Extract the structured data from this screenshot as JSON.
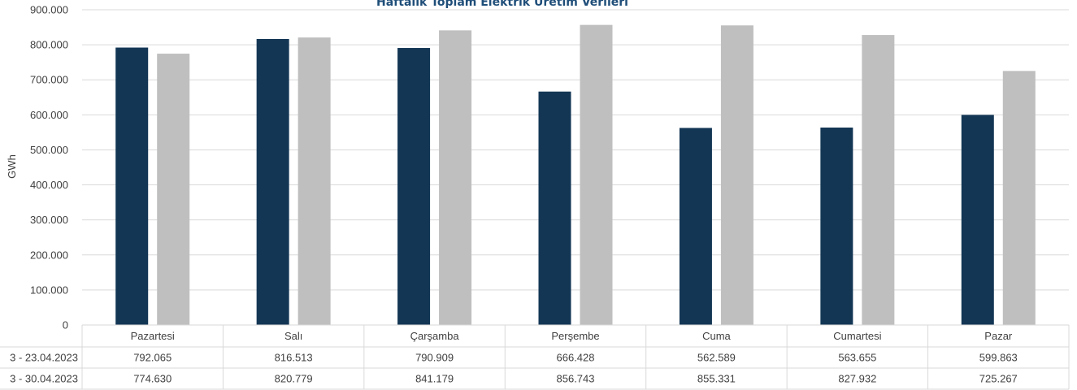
{
  "chart_data": {
    "type": "bar",
    "title": "Haftalık Toplam Elektrik Üretim Verileri",
    "ylabel": "GWh",
    "ylim": [
      0,
      900000
    ],
    "y_ticks": [
      "0",
      "100.000",
      "200.000",
      "300.000",
      "400.000",
      "500.000",
      "600.000",
      "700.000",
      "800.000",
      "900.000"
    ],
    "categories": [
      "Pazartesi",
      "Salı",
      "Çarşamba",
      "Perşembe",
      "Cuma",
      "Cumartesi",
      "Pazar"
    ],
    "series": [
      {
        "name": "3 - 23.04.2023",
        "color": "#133655",
        "values": [
          792065,
          816513,
          790909,
          666428,
          562589,
          563655,
          599863
        ],
        "labels": [
          "792.065",
          "816.513",
          "790.909",
          "666.428",
          "562.589",
          "563.655",
          "599.863"
        ]
      },
      {
        "name": "3 - 30.04.2023",
        "color": "#bfbfbf",
        "values": [
          774630,
          820779,
          841179,
          856743,
          855331,
          827932,
          725267
        ],
        "labels": [
          "774.630",
          "820.779",
          "841.179",
          "856.743",
          "855.331",
          "827.932",
          "725.267"
        ]
      }
    ],
    "grid": true,
    "legend": "data-table"
  }
}
